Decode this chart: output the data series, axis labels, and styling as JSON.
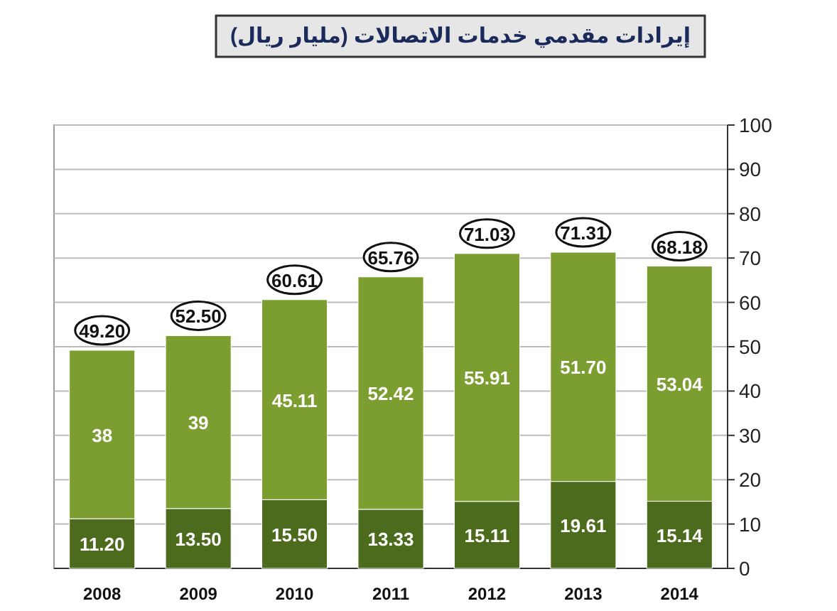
{
  "chart_data": {
    "type": "bar",
    "title": "إيرادات مقدمي خدمات الاتصالات (مليار ريال)",
    "categories": [
      "2008",
      "2009",
      "2010",
      "2011",
      "2012",
      "2013",
      "2014"
    ],
    "stacked": true,
    "series": [
      {
        "color": "#4d6b1c",
        "values": [
          11.2,
          13.5,
          15.5,
          13.33,
          15.11,
          19.61,
          15.14
        ],
        "value_labels": [
          "11.20",
          "13.50",
          "15.50",
          "13.33",
          "15.11",
          "19.61",
          "15.14"
        ]
      },
      {
        "color": "#7c9e30",
        "values": [
          38,
          39,
          45.11,
          52.42,
          55.91,
          51.7,
          53.04
        ],
        "value_labels": [
          "38",
          "39",
          "45.11",
          "52.42",
          "55.91",
          "51.70",
          "53.04"
        ]
      }
    ],
    "totals": [
      "49.20",
      "52.50",
      "60.61",
      "65.76",
      "71.03",
      "71.31",
      "68.18"
    ],
    "ylim": [
      0,
      100
    ],
    "yticks": [
      0,
      10,
      20,
      30,
      40,
      50,
      60,
      70,
      80,
      90,
      100
    ],
    "grid": "y"
  }
}
